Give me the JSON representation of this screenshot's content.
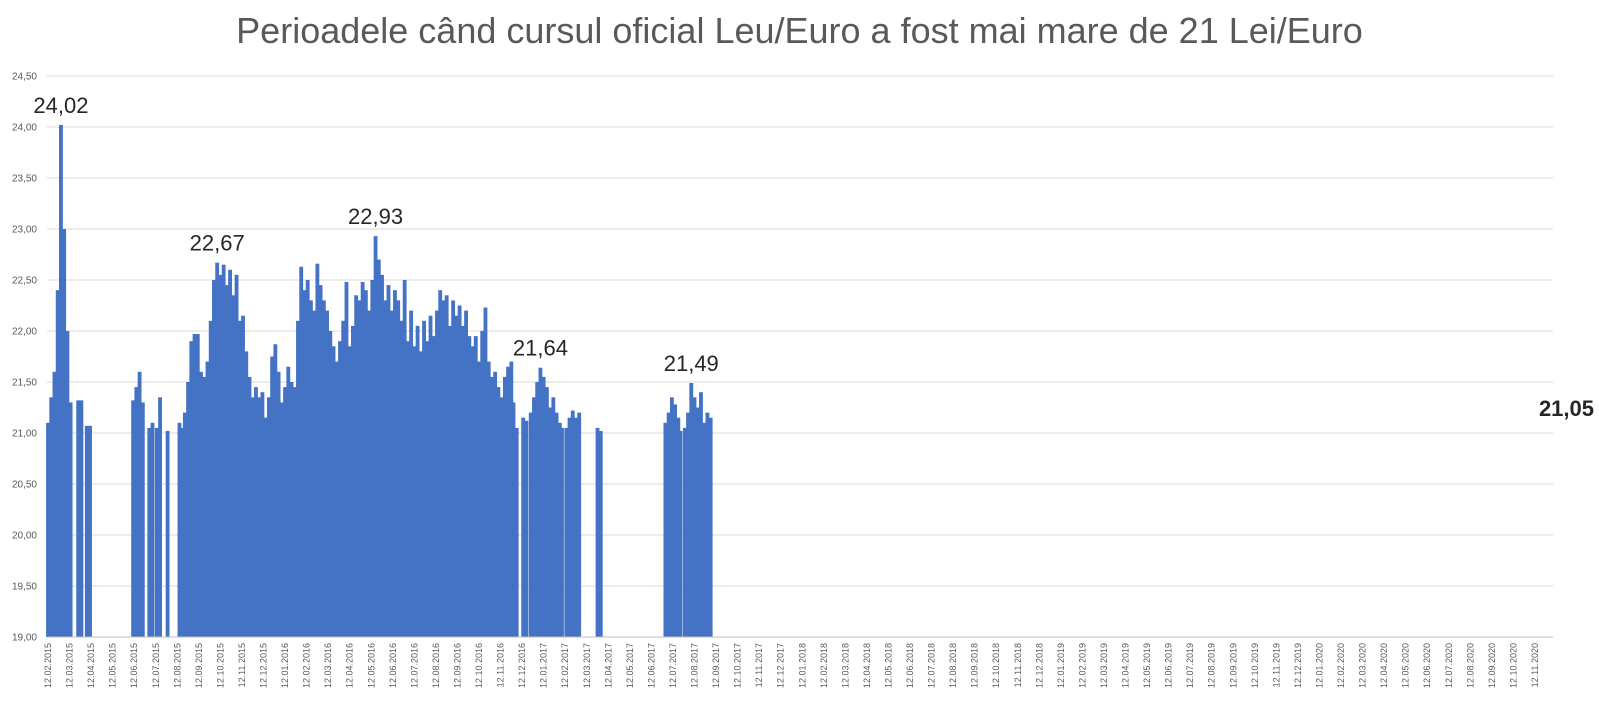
{
  "chart_data": {
    "type": "bar",
    "title": "Perioadele când cursul oficial Leu/Euro a fost mai mare de 21 Lei/Euro",
    "xlabel": "",
    "ylabel": "",
    "ylim": [
      19.0,
      24.5
    ],
    "grid": true,
    "legend": "none",
    "bar_color": "#4472C4",
    "y_ticks": [
      "19,00",
      "19,50",
      "20,00",
      "20,50",
      "21,00",
      "21,50",
      "22,00",
      "22,50",
      "23,00",
      "23,50",
      "24,00",
      "24,50"
    ],
    "x_tick_labels": [
      "12.02.2015",
      "12.03.2015",
      "12.04.2015",
      "12.05.2015",
      "12.06.2015",
      "12.07.2015",
      "12.08.2015",
      "12.09.2015",
      "12.10.2015",
      "12.11.2015",
      "12.12.2015",
      "12.01.2016",
      "12.02.2016",
      "12.03.2016",
      "12.04.2016",
      "12.05.2016",
      "12.06.2016",
      "12.07.2016",
      "12.08.2016",
      "12.09.2016",
      "12.10.2016",
      "12.11.2016",
      "12.12.2016",
      "12.01.2017",
      "12.02.2017",
      "12.03.2017",
      "12.04.2017",
      "12.05.2017",
      "12.06.2017",
      "12.07.2017",
      "12.08.2017",
      "12.09.2017",
      "12.10.2017",
      "12.11.2017",
      "12.12.2017",
      "12.01.2018",
      "12.02.2018",
      "12.03.2018",
      "12.04.2018",
      "12.05.2018",
      "12.06.2018",
      "12.07.2018",
      "12.08.2018",
      "12.09.2018",
      "12.10.2018",
      "12.11.2018",
      "12.12.2018",
      "12.01.2019",
      "12.02.2019",
      "12.03.2019",
      "12.04.2019",
      "12.05.2019",
      "12.06.2019",
      "12.07.2019",
      "12.08.2019",
      "12.09.2019",
      "12.10.2019",
      "12.11.2019",
      "12.12.2019",
      "12.01.2020",
      "12.02.2020",
      "12.03.2020",
      "12.04.2020",
      "12.05.2020",
      "12.06.2020",
      "12.07.2020",
      "12.08.2020",
      "12.09.2020",
      "12.10.2020",
      "12.11.2020"
    ],
    "series": [
      {
        "values": [
          [
            0,
            21.1
          ],
          [
            0.15,
            21.35
          ],
          [
            0.3,
            21.6
          ],
          [
            0.45,
            22.4
          ],
          [
            0.6,
            24.02
          ],
          [
            0.75,
            23.0
          ],
          [
            0.9,
            22.0
          ],
          [
            1.05,
            21.3
          ],
          [
            1.4,
            21.32
          ],
          [
            1.55,
            21.32
          ],
          [
            1.8,
            21.07
          ],
          [
            1.95,
            21.07
          ],
          [
            3.95,
            21.32
          ],
          [
            4.1,
            21.45
          ],
          [
            4.25,
            21.6
          ],
          [
            4.4,
            21.3
          ],
          [
            4.7,
            21.05
          ],
          [
            4.85,
            21.1
          ],
          [
            5.05,
            21.05
          ],
          [
            5.2,
            21.35
          ],
          [
            5.55,
            21.02
          ],
          [
            6.1,
            21.1
          ],
          [
            6.25,
            21.05
          ],
          [
            6.35,
            21.2
          ],
          [
            6.5,
            21.5
          ],
          [
            6.65,
            21.9
          ],
          [
            6.8,
            21.97
          ],
          [
            6.95,
            21.97
          ],
          [
            7.1,
            21.6
          ],
          [
            7.25,
            21.55
          ],
          [
            7.4,
            21.7
          ],
          [
            7.55,
            22.1
          ],
          [
            7.7,
            22.5
          ],
          [
            7.85,
            22.67
          ],
          [
            8.0,
            22.55
          ],
          [
            8.15,
            22.65
          ],
          [
            8.3,
            22.45
          ],
          [
            8.45,
            22.6
          ],
          [
            8.6,
            22.35
          ],
          [
            8.75,
            22.55
          ],
          [
            8.9,
            22.1
          ],
          [
            9.05,
            22.15
          ],
          [
            9.2,
            21.8
          ],
          [
            9.35,
            21.55
          ],
          [
            9.5,
            21.35
          ],
          [
            9.65,
            21.45
          ],
          [
            9.8,
            21.35
          ],
          [
            9.95,
            21.4
          ],
          [
            10.1,
            21.15
          ],
          [
            10.25,
            21.35
          ],
          [
            10.4,
            21.75
          ],
          [
            10.55,
            21.87
          ],
          [
            10.7,
            21.6
          ],
          [
            10.85,
            21.3
          ],
          [
            11.0,
            21.45
          ],
          [
            11.15,
            21.65
          ],
          [
            11.3,
            21.5
          ],
          [
            11.45,
            21.45
          ],
          [
            11.6,
            22.1
          ],
          [
            11.75,
            22.63
          ],
          [
            11.9,
            22.4
          ],
          [
            12.05,
            22.5
          ],
          [
            12.2,
            22.3
          ],
          [
            12.35,
            22.2
          ],
          [
            12.5,
            22.66
          ],
          [
            12.65,
            22.45
          ],
          [
            12.8,
            22.3
          ],
          [
            12.95,
            22.2
          ],
          [
            13.1,
            22.0
          ],
          [
            13.25,
            21.85
          ],
          [
            13.4,
            21.7
          ],
          [
            13.55,
            21.9
          ],
          [
            13.7,
            22.1
          ],
          [
            13.85,
            22.48
          ],
          [
            14.0,
            21.85
          ],
          [
            14.15,
            22.05
          ],
          [
            14.3,
            22.35
          ],
          [
            14.45,
            22.3
          ],
          [
            14.6,
            22.48
          ],
          [
            14.75,
            22.4
          ],
          [
            14.9,
            22.2
          ],
          [
            15.05,
            22.5
          ],
          [
            15.2,
            22.93
          ],
          [
            15.35,
            22.7
          ],
          [
            15.5,
            22.55
          ],
          [
            15.65,
            22.3
          ],
          [
            15.8,
            22.45
          ],
          [
            15.95,
            22.2
          ],
          [
            16.1,
            22.4
          ],
          [
            16.25,
            22.3
          ],
          [
            16.4,
            22.1
          ],
          [
            16.55,
            22.5
          ],
          [
            16.7,
            21.9
          ],
          [
            16.85,
            22.2
          ],
          [
            17.0,
            21.85
          ],
          [
            17.15,
            22.05
          ],
          [
            17.3,
            21.8
          ],
          [
            17.45,
            22.1
          ],
          [
            17.6,
            21.9
          ],
          [
            17.75,
            22.15
          ],
          [
            17.9,
            21.95
          ],
          [
            18.05,
            22.2
          ],
          [
            18.2,
            22.4
          ],
          [
            18.35,
            22.3
          ],
          [
            18.5,
            22.35
          ],
          [
            18.65,
            22.05
          ],
          [
            18.8,
            22.3
          ],
          [
            18.95,
            22.15
          ],
          [
            19.1,
            22.25
          ],
          [
            19.25,
            22.05
          ],
          [
            19.4,
            22.2
          ],
          [
            19.55,
            21.95
          ],
          [
            19.7,
            21.85
          ],
          [
            19.85,
            21.95
          ],
          [
            20.0,
            21.7
          ],
          [
            20.15,
            22.0
          ],
          [
            20.3,
            22.23
          ],
          [
            20.45,
            21.7
          ],
          [
            20.6,
            21.55
          ],
          [
            20.75,
            21.6
          ],
          [
            20.9,
            21.45
          ],
          [
            21.05,
            21.35
          ],
          [
            21.2,
            21.55
          ],
          [
            21.35,
            21.65
          ],
          [
            21.5,
            21.7
          ],
          [
            21.6,
            21.3
          ],
          [
            21.75,
            21.05
          ],
          [
            22.05,
            21.15
          ],
          [
            22.2,
            21.12
          ],
          [
            22.4,
            21.2
          ],
          [
            22.55,
            21.35
          ],
          [
            22.7,
            21.5
          ],
          [
            22.85,
            21.64
          ],
          [
            23.0,
            21.55
          ],
          [
            23.15,
            21.45
          ],
          [
            23.3,
            21.25
          ],
          [
            23.45,
            21.35
          ],
          [
            23.6,
            21.2
          ],
          [
            23.75,
            21.1
          ],
          [
            23.85,
            21.05
          ],
          [
            24.05,
            21.05
          ],
          [
            24.2,
            21.15
          ],
          [
            24.35,
            21.22
          ],
          [
            24.5,
            21.15
          ],
          [
            24.65,
            21.2
          ],
          [
            25.5,
            21.05
          ],
          [
            25.65,
            21.02
          ],
          [
            28.65,
            21.1
          ],
          [
            28.8,
            21.2
          ],
          [
            28.95,
            21.35
          ],
          [
            29.1,
            21.28
          ],
          [
            29.25,
            21.15
          ],
          [
            29.35,
            21.02
          ],
          [
            29.55,
            21.05
          ],
          [
            29.7,
            21.2
          ],
          [
            29.85,
            21.49
          ],
          [
            30.0,
            21.35
          ],
          [
            30.15,
            21.25
          ],
          [
            30.3,
            21.4
          ],
          [
            30.45,
            21.1
          ],
          [
            30.6,
            21.2
          ],
          [
            30.75,
            21.15
          ],
          [
            72.85,
            21.05
          ]
        ]
      }
    ],
    "annotations": [
      {
        "text": "24,02",
        "x": 0.6,
        "y": 24.02,
        "bold": false
      },
      {
        "text": "22,67",
        "x": 7.85,
        "y": 22.67,
        "bold": false
      },
      {
        "text": "22,93",
        "x": 15.2,
        "y": 22.93,
        "bold": false
      },
      {
        "text": "21,64",
        "x": 22.85,
        "y": 21.64,
        "bold": false
      },
      {
        "text": "21,49",
        "x": 29.85,
        "y": 21.49,
        "bold": false
      },
      {
        "text": "21,05",
        "x": 72.85,
        "y": 21.05,
        "bold": true
      }
    ]
  }
}
